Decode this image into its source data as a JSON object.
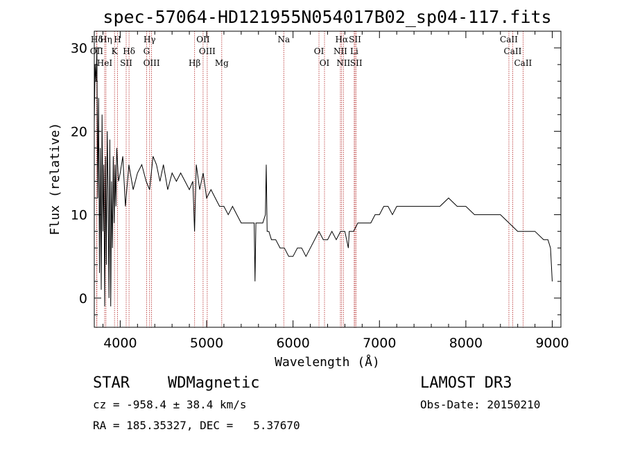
{
  "chart_data": {
    "type": "line",
    "title": "spec-57064-HD121955N054017B02_sp04-117.fits",
    "xlabel": "Wavelength (Å)",
    "ylabel": "Flux (relative)",
    "xlim": [
      3700,
      9100
    ],
    "ylim": [
      -3.5,
      32
    ],
    "x_ticks": [
      4000,
      5000,
      6000,
      7000,
      8000,
      9000
    ],
    "y_ticks": [
      0,
      10,
      20,
      30
    ],
    "series": [
      {
        "name": "flux",
        "x": [
          3700,
          3710,
          3720,
          3730,
          3740,
          3750,
          3760,
          3770,
          3780,
          3790,
          3800,
          3810,
          3820,
          3830,
          3840,
          3850,
          3860,
          3870,
          3880,
          3890,
          3900,
          3910,
          3920,
          3930,
          3940,
          3950,
          3960,
          3980,
          4000,
          4030,
          4060,
          4100,
          4150,
          4200,
          4250,
          4300,
          4340,
          4380,
          4420,
          4460,
          4500,
          4550,
          4600,
          4650,
          4700,
          4750,
          4800,
          4840,
          4860,
          4880,
          4920,
          4960,
          5000,
          5050,
          5100,
          5150,
          5200,
          5250,
          5300,
          5350,
          5400,
          5450,
          5500,
          5550,
          5560,
          5570,
          5600,
          5650,
          5680,
          5690,
          5700,
          5720,
          5750,
          5800,
          5850,
          5900,
          5950,
          6000,
          6050,
          6100,
          6150,
          6200,
          6250,
          6300,
          6350,
          6400,
          6450,
          6500,
          6550,
          6600,
          6640,
          6650,
          6660,
          6700,
          6750,
          6800,
          6850,
          6900,
          6950,
          7000,
          7050,
          7100,
          7150,
          7200,
          7300,
          7400,
          7500,
          7600,
          7700,
          7800,
          7900,
          8000,
          8100,
          8200,
          8300,
          8400,
          8500,
          8600,
          8700,
          8800,
          8900,
          8950,
          8980,
          9000
        ],
        "y": [
          21,
          28,
          26,
          30,
          12,
          24,
          3,
          18,
          1,
          22,
          8,
          16,
          -1,
          17,
          4,
          20,
          13,
          0,
          19,
          -1,
          14,
          6,
          17,
          9,
          16,
          11,
          18,
          14,
          15,
          17,
          11,
          16,
          13,
          15,
          16,
          14,
          13,
          17,
          16,
          14,
          16,
          13,
          15,
          14,
          15,
          14,
          13,
          14,
          8,
          16,
          13,
          15,
          12,
          13,
          12,
          11,
          11,
          10,
          11,
          10,
          9,
          9,
          9,
          9,
          2,
          9,
          9,
          9,
          10,
          16,
          8,
          8,
          7,
          7,
          6,
          6,
          5,
          5,
          6,
          6,
          5,
          6,
          7,
          8,
          7,
          7,
          8,
          7,
          8,
          8,
          6,
          8,
          8,
          8,
          9,
          9,
          9,
          9,
          10,
          10,
          11,
          11,
          10,
          11,
          11,
          11,
          11,
          11,
          11,
          12,
          11,
          11,
          10,
          10,
          10,
          10,
          9,
          8,
          8,
          8,
          7,
          7,
          6,
          2
        ]
      }
    ],
    "lines": [
      {
        "label": "Hδ",
        "wl": 3730
      },
      {
        "label": "OII",
        "wl": 3727
      },
      {
        "label": "HeI",
        "wl": 3820
      },
      {
        "label": "Hη",
        "wl": 3835
      },
      {
        "label": "K",
        "wl": 3934
      },
      {
        "label": "SII",
        "wl": 4069
      },
      {
        "label": "H",
        "wl": 3969
      },
      {
        "label": "Hδ",
        "wl": 4102
      },
      {
        "label": "OIII",
        "wl": 4363
      },
      {
        "label": "Hγ",
        "wl": 4340
      },
      {
        "label": "G",
        "wl": 4305
      },
      {
        "label": "Hβ",
        "wl": 4861
      },
      {
        "label": "OII",
        "wl": 4959
      },
      {
        "label": "OIII",
        "wl": 5007
      },
      {
        "label": "Mg",
        "wl": 5175
      },
      {
        "label": "Na",
        "wl": 5893
      },
      {
        "label": "OI",
        "wl": 6300
      },
      {
        "label": "OI",
        "wl": 6364
      },
      {
        "label": "Hα",
        "wl": 6563
      },
      {
        "label": "NII",
        "wl": 6548
      },
      {
        "label": "NII",
        "wl": 6583
      },
      {
        "label": "SII",
        "wl": 6717
      },
      {
        "label": "Li",
        "wl": 6708
      },
      {
        "label": "SII",
        "wl": 6731
      },
      {
        "label": "CaII",
        "wl": 8498
      },
      {
        "label": "CaII",
        "wl": 8542
      },
      {
        "label": "CaII",
        "wl": 8662
      }
    ]
  },
  "info": {
    "class_label": "STAR",
    "subclass": "WDMagnetic",
    "survey": "LAMOST DR3",
    "cz": "cz = -958.4 ± 38.4 km/s",
    "obs_date": "Obs-Date: 20150210",
    "radec": "RA = 185.35327, DEC =   5.37670"
  },
  "colors": {
    "axis": "#000000",
    "spectrum": "#000000",
    "lines": "#b22222"
  }
}
